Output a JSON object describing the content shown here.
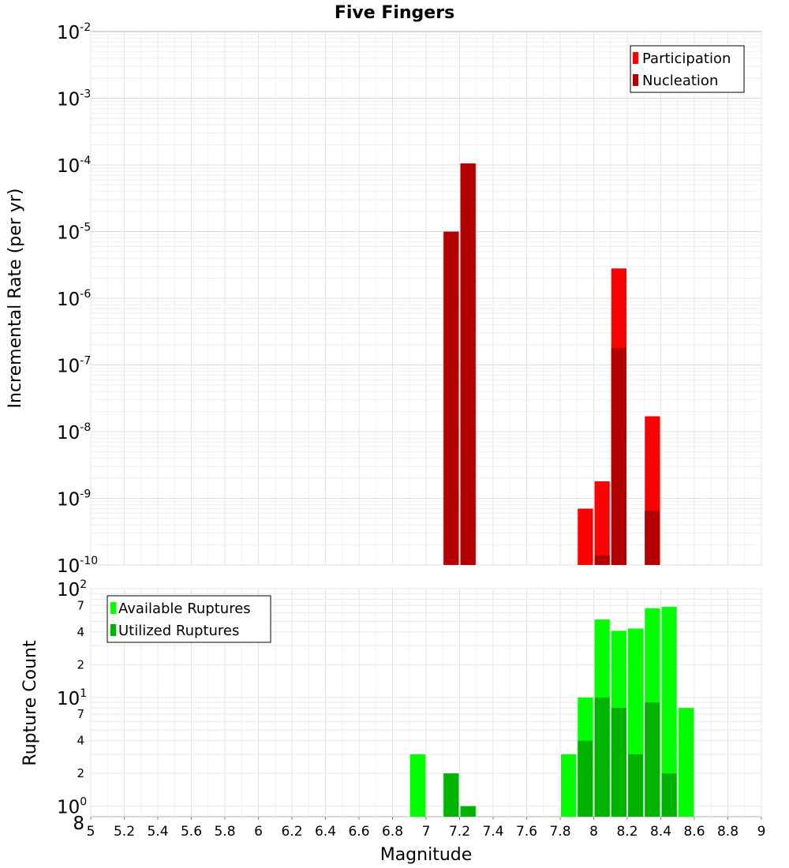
{
  "title": "Five Fingers",
  "chart_data": [
    {
      "type": "bar",
      "ylabel": "Incremental Rate (per yr)",
      "xlabel": "",
      "ylog": true,
      "ylim": [
        1e-10,
        0.01
      ],
      "xlim": [
        5,
        9
      ],
      "y_ticks": [
        {
          "base": "10",
          "exp": "-2",
          "value": 0.01
        },
        {
          "base": "10",
          "exp": "-3",
          "value": 0.001
        },
        {
          "base": "10",
          "exp": "-4",
          "value": 0.0001
        },
        {
          "base": "10",
          "exp": "-5",
          "value": 1e-05
        },
        {
          "base": "10",
          "exp": "-6",
          "value": 1e-06
        },
        {
          "base": "10",
          "exp": "-7",
          "value": 1e-07
        },
        {
          "base": "10",
          "exp": "-8",
          "value": 1e-08
        },
        {
          "base": "10",
          "exp": "-9",
          "value": 1e-09
        },
        {
          "base": "10",
          "exp": "-10",
          "value": 1e-10
        }
      ],
      "legend": {
        "position": "top-right",
        "entries": [
          "Participation",
          "Nucleation"
        ]
      },
      "bin_width": 0.1,
      "series": [
        {
          "name": "Participation",
          "color": "#ff0000",
          "x": [
            7.15,
            7.25,
            7.95,
            8.05,
            8.15,
            8.35
          ],
          "values": [
            1e-05,
            0.000105,
            7e-10,
            1.8e-09,
            2.8e-06,
            1.7e-08
          ]
        },
        {
          "name": "Nucleation",
          "color": "#b30000",
          "x": [
            7.15,
            7.25,
            8.05,
            8.15,
            8.35
          ],
          "values": [
            1e-05,
            0.000105,
            1.4e-10,
            1.8e-07,
            6.5e-10
          ]
        }
      ]
    },
    {
      "type": "bar",
      "ylabel": "Rupture Count",
      "xlabel": "Magnitude",
      "ylog": true,
      "ylim": [
        0.8,
        100
      ],
      "xlim": [
        5,
        9
      ],
      "x_ticks": [
        "5",
        "5.2",
        "5.4",
        "5.6",
        "5.8",
        "6",
        "6.2",
        "6.4",
        "6.6",
        "6.8",
        "7",
        "7.2",
        "7.4",
        "7.6",
        "7.8",
        "8",
        "8.2",
        "8.4",
        "8.6",
        "8.8",
        "9"
      ],
      "y_major_ticks": [
        {
          "base": "10",
          "exp": "2",
          "value": 100
        },
        {
          "base": "10",
          "exp": "1",
          "value": 10
        },
        {
          "base": "10",
          "exp": "0",
          "value": 1
        }
      ],
      "y_minor_ticks": [
        {
          "label": "7",
          "value": 70
        },
        {
          "label": "4",
          "value": 40
        },
        {
          "label": "2",
          "value": 20
        },
        {
          "label": "7",
          "value": 7
        },
        {
          "label": "4",
          "value": 4
        },
        {
          "label": "2",
          "value": 2
        },
        {
          "label": "8",
          "value": 0.8
        }
      ],
      "legend": {
        "position": "top-left",
        "entries": [
          "Available Ruptures",
          "Utilized Ruptures"
        ]
      },
      "bin_width": 0.1,
      "series": [
        {
          "name": "Available Ruptures",
          "color": "#00ff00",
          "x": [
            6.95,
            7.15,
            7.25,
            7.85,
            7.95,
            8.05,
            8.15,
            8.25,
            8.35,
            8.45,
            8.55
          ],
          "values": [
            3,
            2,
            1,
            3,
            10,
            52,
            41,
            43,
            66,
            68,
            8
          ]
        },
        {
          "name": "Utilized Ruptures",
          "color": "#00b300",
          "x": [
            7.15,
            7.25,
            7.95,
            8.05,
            8.15,
            8.25,
            8.35,
            8.45
          ],
          "values": [
            2,
            1,
            4,
            10,
            8,
            3,
            9,
            2
          ]
        }
      ]
    }
  ]
}
